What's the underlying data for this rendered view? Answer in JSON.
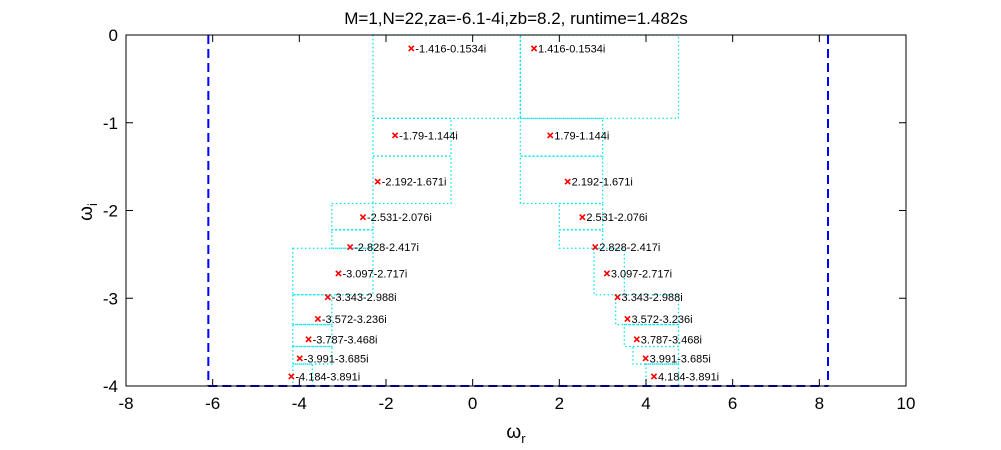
{
  "chart_data": {
    "type": "scatter",
    "title": "M=1,N=22,za=-6.1-4i,zb=8.2, runtime=1.482s",
    "xlabel": "ω",
    "xlabel_sub": "r",
    "ylabel": "ω",
    "ylabel_sub": "i",
    "xlim": [
      -8,
      10
    ],
    "ylim": [
      -4,
      0
    ],
    "xticks": [
      -8,
      -6,
      -4,
      -2,
      0,
      2,
      4,
      6,
      8,
      10
    ],
    "yticks": [
      0,
      -1,
      -2,
      -3,
      -4
    ],
    "grid": false,
    "marker_color": "#ff0000",
    "dashed_line_color": "#0000ff",
    "dotted_line_color": "#00e5ee",
    "points": [
      {
        "x": 1.416,
        "y": -0.1534,
        "label": "1.416-0.1534i"
      },
      {
        "x": -1.416,
        "y": -0.1534,
        "label": "-1.416-0.1534i"
      },
      {
        "x": 1.79,
        "y": -1.144,
        "label": "1.79-1.144i"
      },
      {
        "x": -1.79,
        "y": -1.144,
        "label": "-1.79-1.144i"
      },
      {
        "x": 2.192,
        "y": -1.671,
        "label": "2.192-1.671i"
      },
      {
        "x": -2.192,
        "y": -1.671,
        "label": "-2.192-1.671i"
      },
      {
        "x": 2.531,
        "y": -2.076,
        "label": "2.531-2.076i"
      },
      {
        "x": -2.531,
        "y": -2.076,
        "label": "-2.531-2.076i"
      },
      {
        "x": 2.828,
        "y": -2.417,
        "label": "2.828-2.417i"
      },
      {
        "x": -2.828,
        "y": -2.417,
        "label": "-2.828-2.417i"
      },
      {
        "x": 3.097,
        "y": -2.717,
        "label": "3.097-2.717i"
      },
      {
        "x": -3.097,
        "y": -2.717,
        "label": "-3.097-2.717i"
      },
      {
        "x": 3.343,
        "y": -2.988,
        "label": "3.343-2.988i"
      },
      {
        "x": -3.343,
        "y": -2.988,
        "label": "-3.343-2.988i"
      },
      {
        "x": 3.572,
        "y": -3.236,
        "label": "3.572-3.236i"
      },
      {
        "x": -3.572,
        "y": -3.236,
        "label": "-3.572-3.236i"
      },
      {
        "x": 3.787,
        "y": -3.468,
        "label": "3.787-3.468i"
      },
      {
        "x": -3.787,
        "y": -3.468,
        "label": "-3.787-3.468i"
      },
      {
        "x": 3.991,
        "y": -3.685,
        "label": "3.991-3.685i"
      },
      {
        "x": -3.991,
        "y": -3.685,
        "label": "-3.991-3.685i"
      },
      {
        "x": 4.184,
        "y": -3.891,
        "label": "4.184-3.891i"
      },
      {
        "x": -4.184,
        "y": -3.891,
        "label": "-4.184-3.891i"
      }
    ],
    "dashed_segments": [
      [
        [
          -6.1,
          0
        ],
        [
          -6.1,
          -4
        ]
      ],
      [
        [
          8.2,
          0
        ],
        [
          8.2,
          -4
        ]
      ],
      [
        [
          -6.1,
          -4
        ],
        [
          8.2,
          -4
        ]
      ]
    ],
    "dotted_rectangles": [
      [
        -2.3,
        1.1,
        -0.95,
        0
      ],
      [
        1.1,
        4.75,
        -0.95,
        0
      ],
      [
        -2.3,
        -0.5,
        -1.38,
        -0.95
      ],
      [
        1.1,
        3.0,
        -1.38,
        -0.95
      ],
      [
        -2.3,
        -0.5,
        -1.92,
        -1.38
      ],
      [
        1.1,
        3.0,
        -1.92,
        -1.38
      ],
      [
        -3.25,
        -2.3,
        -2.22,
        -1.92
      ],
      [
        2.0,
        3.0,
        -2.22,
        -1.92
      ],
      [
        -3.25,
        -2.3,
        -2.43,
        -2.22
      ],
      [
        2.0,
        3.0,
        -2.43,
        -2.22
      ],
      [
        -4.15,
        -2.3,
        -2.96,
        -2.43
      ],
      [
        2.8,
        3.5,
        -2.96,
        -2.43
      ],
      [
        -4.15,
        -3.25,
        -3.3,
        -2.96
      ],
      [
        3.3,
        4.75,
        -3.3,
        -2.96
      ],
      [
        -4.15,
        -3.25,
        -3.55,
        -3.3
      ],
      [
        3.5,
        4.75,
        -3.55,
        -3.3
      ],
      [
        -4.15,
        -3.25,
        -3.75,
        -3.55
      ],
      [
        3.7,
        4.75,
        -3.75,
        -3.55
      ],
      [
        -4.15,
        -3.7,
        -4.0,
        -3.75
      ],
      [
        4.0,
        4.75,
        -4.0,
        -3.75
      ]
    ]
  }
}
